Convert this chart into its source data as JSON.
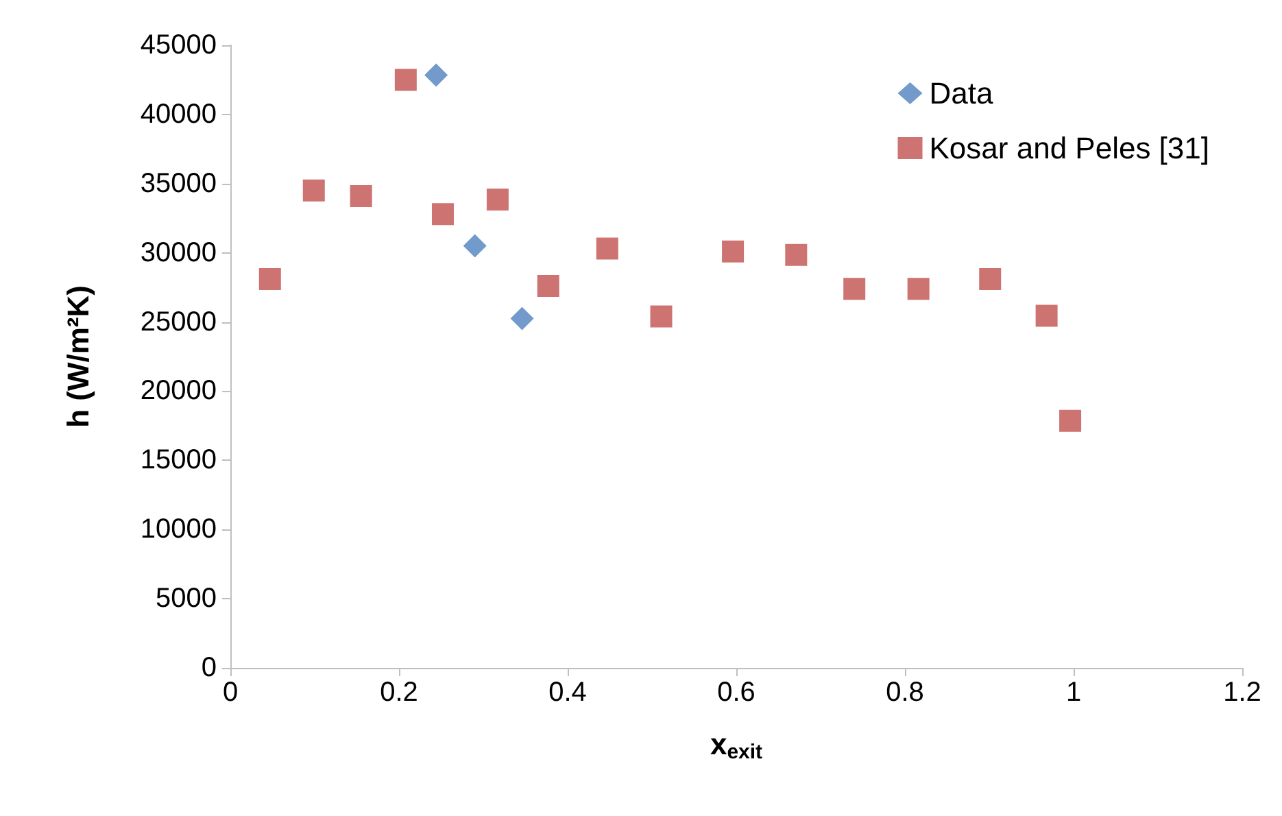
{
  "chart_data": {
    "type": "scatter",
    "xlabel": "x$_{exit}$",
    "ylabel": "h (W/m²K)",
    "xlim": [
      0,
      1.2
    ],
    "xticks": [
      0,
      0.2,
      0.4,
      0.6,
      0.8,
      1,
      1.2
    ],
    "ylim": [
      0,
      45000
    ],
    "yticks": [
      0,
      5000,
      10000,
      15000,
      20000,
      25000,
      30000,
      35000,
      40000,
      45000
    ],
    "grid": false,
    "legend": "top right",
    "series": [
      {
        "name": "Data",
        "color": "#4f81bd",
        "marker": "diamond",
        "x": [
          0.244,
          0.29,
          0.346
        ],
        "values": [
          42850,
          30500,
          25250
        ]
      },
      {
        "name": "Kosar and Peles [31]",
        "color": "#c0504d",
        "marker": "square",
        "x": [
          0.047,
          0.099,
          0.155,
          0.208,
          0.252,
          0.317,
          0.377,
          0.447,
          0.511,
          0.596,
          0.671,
          0.74,
          0.816,
          0.901,
          0.968,
          0.996
        ],
        "values": [
          28100,
          34500,
          34100,
          42500,
          32800,
          33850,
          27600,
          30300,
          25400,
          30100,
          29850,
          27400,
          27400,
          28100,
          25450,
          17850
        ]
      }
    ]
  }
}
